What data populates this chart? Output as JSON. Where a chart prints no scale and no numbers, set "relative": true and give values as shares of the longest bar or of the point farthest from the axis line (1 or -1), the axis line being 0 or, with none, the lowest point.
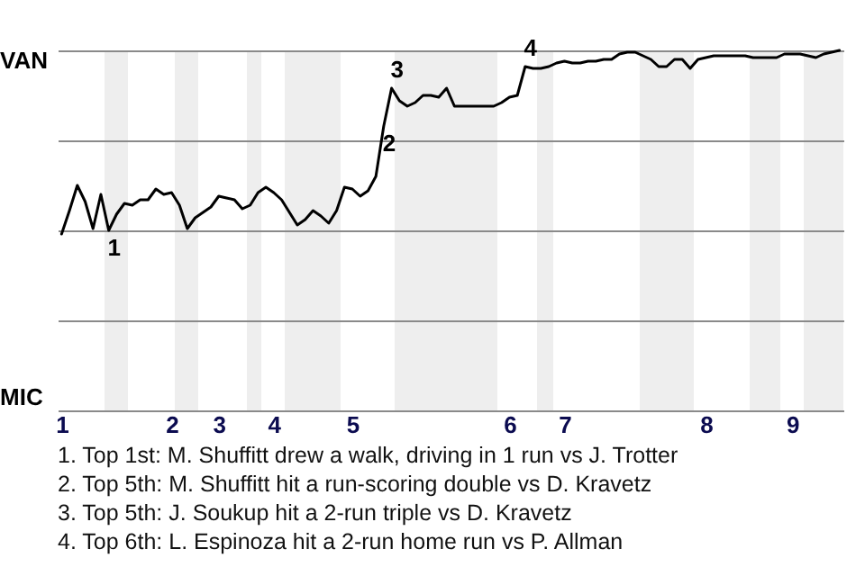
{
  "chart_data": {
    "type": "line",
    "relative": true,
    "categories": [
      "1",
      null,
      null,
      null,
      null,
      null,
      null,
      null,
      null,
      null,
      null,
      null,
      null,
      null,
      "2",
      null,
      null,
      null,
      null,
      null,
      "3",
      null,
      null,
      null,
      null,
      null,
      null,
      "4",
      null,
      null,
      null,
      null,
      null,
      null,
      null,
      null,
      null,
      "5",
      null,
      null,
      null,
      null,
      null,
      null,
      null,
      null,
      null,
      null,
      null,
      null,
      null,
      null,
      null,
      null,
      null,
      null,
      null,
      "6",
      null,
      null,
      null,
      null,
      null,
      null,
      "7",
      null,
      null,
      null,
      null,
      null,
      null,
      null,
      null,
      null,
      null,
      null,
      null,
      null,
      null,
      null,
      null,
      null,
      "8",
      null,
      null,
      null,
      null,
      null,
      null,
      null,
      null,
      null,
      null,
      "9",
      null,
      null,
      null,
      null,
      null,
      null
    ],
    "series": [
      {
        "color": "#000000",
        "values": [
          0.49,
          0.555,
          0.625,
          0.58,
          0.505,
          0.6,
          0.5,
          0.545,
          0.575,
          0.57,
          0.585,
          0.585,
          0.615,
          0.6,
          0.605,
          0.57,
          0.505,
          0.535,
          0.55,
          0.565,
          0.595,
          0.59,
          0.585,
          0.56,
          0.57,
          0.605,
          0.62,
          0.605,
          0.585,
          0.55,
          0.515,
          0.53,
          0.555,
          0.54,
          0.52,
          0.555,
          0.62,
          0.615,
          0.595,
          0.61,
          0.65,
          0.79,
          0.895,
          0.86,
          0.845,
          0.855,
          0.875,
          0.875,
          0.87,
          0.895,
          0.845,
          0.845,
          0.845,
          0.845,
          0.845,
          0.845,
          0.855,
          0.87,
          0.875,
          0.955,
          0.95,
          0.95,
          0.955,
          0.965,
          0.97,
          0.965,
          0.965,
          0.97,
          0.97,
          0.975,
          0.975,
          0.99,
          0.995,
          0.995,
          0.985,
          0.975,
          0.955,
          0.955,
          0.975,
          0.975,
          0.95,
          0.975,
          0.98,
          0.985,
          0.985,
          0.985,
          0.985,
          0.985,
          0.98,
          0.98,
          0.98,
          0.98,
          0.99,
          0.99,
          0.99,
          0.985,
          0.98,
          0.99,
          0.995,
          1
        ]
      }
    ],
    "grid": "y",
    "annotations": [
      {
        "text": "1",
        "y": 0.5
      },
      {
        "text": "2",
        "y": 0.79
      },
      {
        "text": "3",
        "y": 0.895
      },
      {
        "text": "4",
        "y": 0.955
      },
      "VAN",
      "MIC",
      "1. Top 1st: M. Shuffitt drew a walk, driving in 1 run vs J. Trotter",
      "2. Top 5th: M. Shuffitt hit a run-scoring double vs D. Kravetz",
      "3. Top 5th: J. Soukup hit a 2-run triple vs D. Kravetz",
      "4. Top 6th: L. Espinoza hit a 2-run home run vs P. Allman"
    ]
  }
}
